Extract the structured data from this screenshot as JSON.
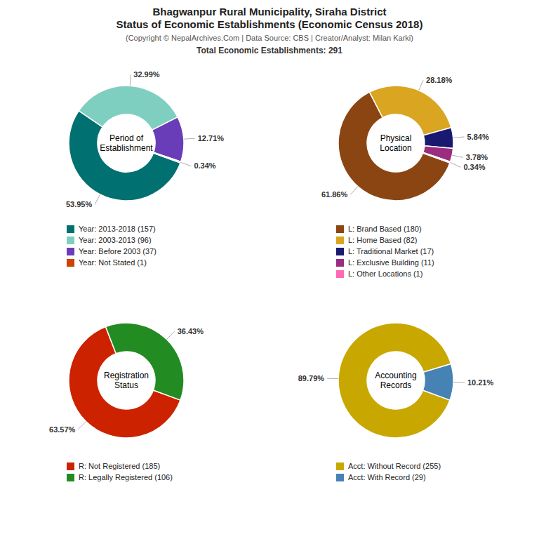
{
  "title": "Bhagwanpur Rural Municipality, Siraha District\nStatus of Economic Establishments (Economic Census 2018)",
  "subtitle": "(Copyright © NepalArchives.Com | Data Source: CBS | Creator/Analyst: Milan Karki)",
  "annotations": [
    "Total Economic Establishments: 291"
  ],
  "chart_data": [
    {
      "type": "donut",
      "title": "Period of\nEstablishment",
      "categories": [
        "Year: 2013-2018 (157)",
        "Year: 2003-2013 (96)",
        "Year: Before 2003 (37)",
        "Year: Not Stated (1)"
      ],
      "values": [
        53.95,
        32.99,
        12.71,
        0.34
      ],
      "value_labels": [
        "53.95%",
        "32.99%",
        "12.71%",
        "0.34%"
      ],
      "colors": [
        "#007070",
        "#7ecfc0",
        "#6a3db8",
        "#cc4400"
      ],
      "data_labels": true,
      "legend": "bottom"
    },
    {
      "type": "donut",
      "title": "Physical\nLocation",
      "categories": [
        "L: Brand Based (180)",
        "L: Home Based (82)",
        "L: Traditional Market (17)",
        "L: Exclusive Building (11)",
        "L: Other Locations (1)"
      ],
      "values": [
        61.86,
        28.18,
        5.84,
        3.78,
        0.34
      ],
      "value_labels": [
        "61.86%",
        "28.18%",
        "5.84%",
        "3.78%",
        "0.34%"
      ],
      "colors": [
        "#8B4513",
        "#DAA520",
        "#191970",
        "#9B2D7F",
        "#FF69B4"
      ],
      "data_labels": true,
      "legend": "bottom"
    },
    {
      "type": "donut",
      "title": "Registration\nStatus",
      "categories": [
        "R: Not Registered (185)",
        "R: Legally Registered (106)"
      ],
      "values": [
        63.57,
        36.43
      ],
      "value_labels": [
        "63.57%",
        "36.43%"
      ],
      "colors": [
        "#cc2200",
        "#228B22"
      ],
      "data_labels": true,
      "legend": "bottom"
    },
    {
      "type": "donut",
      "title": "Accounting\nRecords",
      "categories": [
        "Acct: Without Record (255)",
        "Acct: With Record (29)"
      ],
      "values": [
        89.79,
        10.21
      ],
      "value_labels": [
        "89.79%",
        "10.21%"
      ],
      "colors": [
        "#c8a800",
        "#4682B4"
      ],
      "data_labels": true,
      "legend": "bottom"
    }
  ]
}
